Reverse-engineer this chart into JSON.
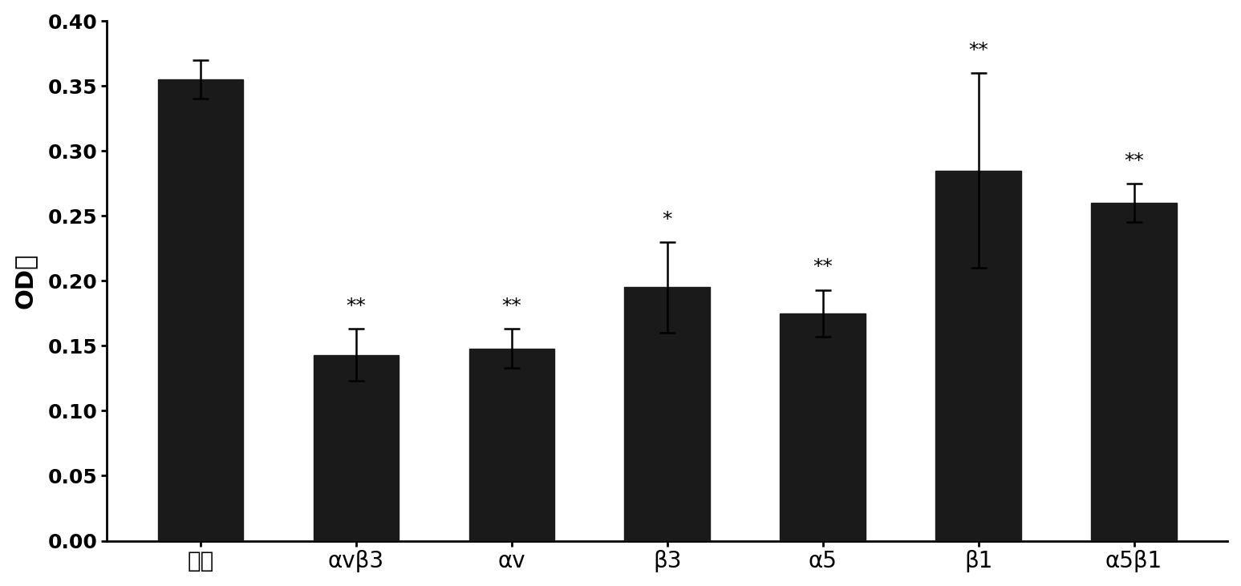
{
  "categories": [
    "多肽",
    "αvβ3",
    "αv",
    "β3",
    "α5",
    "β1",
    "α5β1"
  ],
  "values": [
    0.355,
    0.143,
    0.148,
    0.195,
    0.175,
    0.285,
    0.26
  ],
  "errors": [
    0.015,
    0.02,
    0.015,
    0.035,
    0.018,
    0.075,
    0.015
  ],
  "bar_color": "#1a1a1a",
  "significance": [
    "",
    "**",
    "**",
    "*",
    "**",
    "**",
    "**"
  ],
  "ylabel": "OD値",
  "ylim": [
    0.0,
    0.4
  ],
  "yticks": [
    0.0,
    0.05,
    0.1,
    0.15,
    0.2,
    0.25,
    0.3,
    0.35,
    0.4
  ],
  "background_color": "#ffffff",
  "bar_width": 0.55,
  "ylabel_fontsize": 22,
  "tick_fontsize": 18,
  "sig_fontsize": 18,
  "xlabel_fontsize": 20,
  "error_capsize": 7,
  "error_linewidth": 1.8
}
